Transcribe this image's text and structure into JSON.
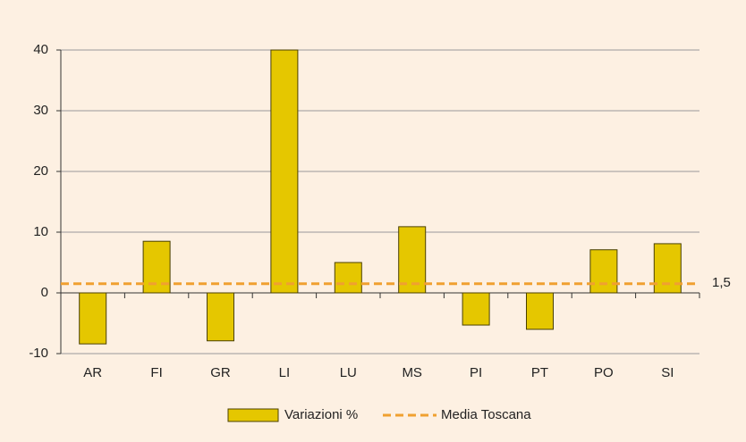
{
  "chart_data": {
    "type": "bar",
    "categories": [
      "AR",
      "FI",
      "GR",
      "LI",
      "LU",
      "MS",
      "PI",
      "PT",
      "PO",
      "SI"
    ],
    "series": [
      {
        "name": "Variazioni %",
        "color": "#e5c700",
        "values": [
          -8.4,
          8.5,
          -7.9,
          40,
          5.0,
          10.9,
          -5.3,
          -6.0,
          7.1,
          8.1
        ]
      }
    ],
    "reference_line": {
      "name": "Media Toscana",
      "value": 1.5,
      "value_label": "1,5",
      "color": "#f0a030"
    },
    "ylim": [
      -10,
      40
    ],
    "yticks": [
      -10,
      0,
      10,
      20,
      30,
      40
    ],
    "grid": true
  }
}
